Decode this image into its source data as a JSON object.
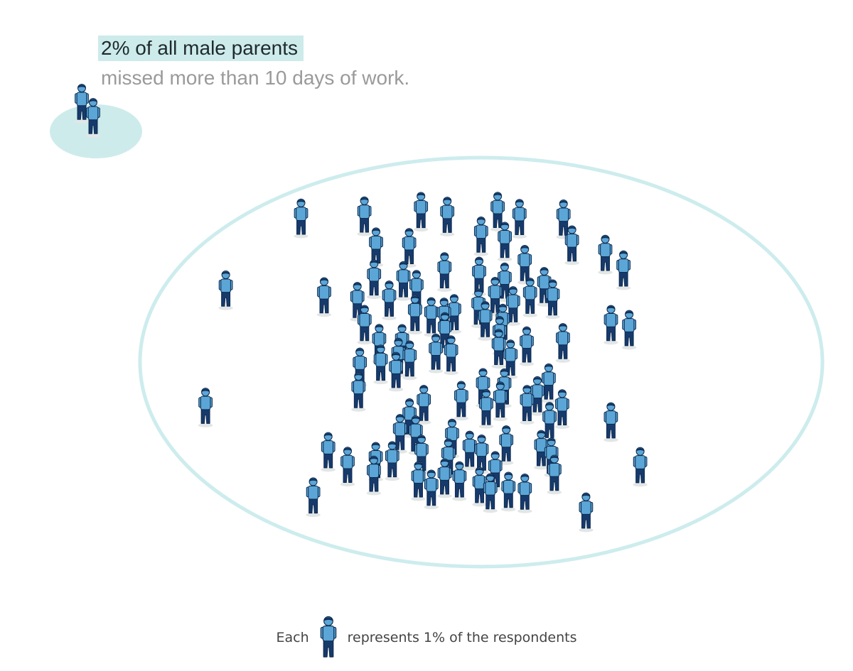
{
  "header": {
    "headline": "2% of all male parents",
    "subline": "missed more than 10 days of work."
  },
  "legend": {
    "prefix": "Each",
    "suffix": "represents 1% of the respondents",
    "icon": "person-icon"
  },
  "colors": {
    "highlight": "#cdebeb",
    "ring": "#cdeced",
    "shirt": "#5ba6d6",
    "pants": "#163a6b",
    "outline": "#0e2a4f",
    "shadow": "#e3e6e6"
  },
  "chart_data": {
    "type": "unit",
    "unit_value_percent": 1,
    "groups": [
      {
        "label": "missed more than 10 days of work",
        "percent": 2,
        "count": 2
      },
      {
        "percent": 98,
        "count": 98
      }
    ]
  }
}
